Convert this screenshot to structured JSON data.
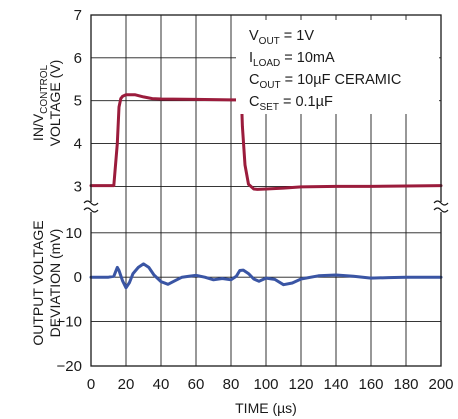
{
  "chart_data": {
    "type": "line",
    "xlabel": "TIME (µs)",
    "x_ticks": [
      0,
      20,
      40,
      60,
      80,
      100,
      120,
      140,
      160,
      180,
      200
    ],
    "xlim": [
      0,
      200
    ],
    "grid": true,
    "top_panel": {
      "ylabel_lines": [
        "IN/V_CONTROL",
        "VOLTAGE (V)"
      ],
      "ylabel_line1_main": "IN/V",
      "ylabel_line1_sub": "CONTROL",
      "ylabel_line2": "VOLTAGE (V)",
      "y_ticks": [
        3,
        4,
        5,
        6,
        7
      ],
      "ylim": [
        2.8,
        7
      ],
      "axis_break": true,
      "series": [
        {
          "color": "#9b1c3c",
          "x": [
            0,
            13,
            15,
            16,
            17,
            18,
            20,
            25,
            30,
            35,
            40,
            60,
            80,
            84,
            86,
            86.5,
            88,
            90,
            93,
            95,
            100,
            110,
            120,
            140,
            160,
            180,
            200
          ],
          "y": [
            3.02,
            3.02,
            4.0,
            4.85,
            5.05,
            5.1,
            5.14,
            5.14,
            5.09,
            5.05,
            5.04,
            5.03,
            5.02,
            5.02,
            5.01,
            4.4,
            3.5,
            3.05,
            2.94,
            2.93,
            2.94,
            2.96,
            2.99,
            3.0,
            3.0,
            3.01,
            3.02
          ]
        }
      ]
    },
    "bottom_panel": {
      "ylabel_lines": [
        "OUTPUT VOLTAGE",
        "DEVIATION (mV)"
      ],
      "y_ticks": [
        10,
        0,
        -10,
        -20
      ],
      "ylim": [
        -20,
        14
      ],
      "axis_break": true,
      "series": [
        {
          "color": "#3a55a4",
          "x": [
            0,
            10,
            13,
            15,
            16,
            18,
            20,
            22,
            24,
            27,
            30,
            33,
            36,
            40,
            44,
            48,
            52,
            56,
            60,
            65,
            70,
            75,
            80,
            83,
            85,
            87,
            90,
            93,
            96,
            100,
            105,
            110,
            115,
            120,
            130,
            140,
            150,
            160,
            170,
            180,
            190,
            200
          ],
          "y": [
            0,
            0,
            0.2,
            2.2,
            1.5,
            -0.8,
            -2.4,
            -1.2,
            0.8,
            2.2,
            3.0,
            2.2,
            0.5,
            -1.0,
            -1.6,
            -0.8,
            0,
            0.2,
            0.4,
            0,
            -0.6,
            -0.3,
            -0.6,
            0.2,
            1.5,
            1.6,
            0.8,
            -0.4,
            -0.9,
            -0.2,
            -0.5,
            -1.7,
            -1.3,
            -0.4,
            0.3,
            0.5,
            0.2,
            -0.2,
            -0.1,
            0,
            0,
            0
          ]
        }
      ]
    },
    "annotations": [
      {
        "main": "V",
        "sub": "OUT",
        "rest": " = 1V"
      },
      {
        "main": "I",
        "sub": "LOAD",
        "rest": " = 10mA"
      },
      {
        "main": "C",
        "sub": "OUT",
        "rest": " = 10µF CERAMIC"
      },
      {
        "main": "C",
        "sub": "SET",
        "rest": " = 0.1µF"
      }
    ]
  }
}
